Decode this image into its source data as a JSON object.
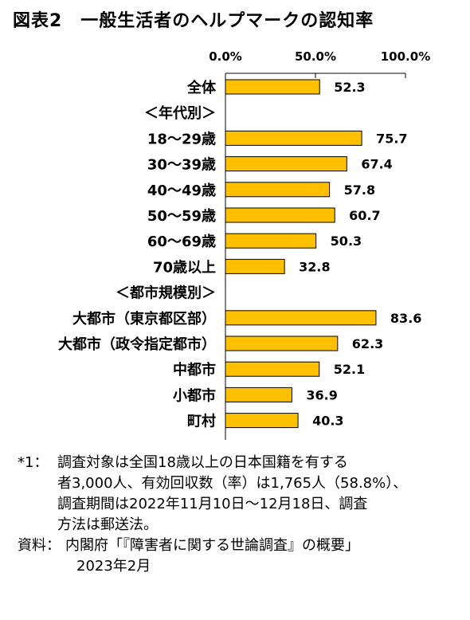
{
  "title": "図表2　一般生活者のヘルプマークの認知率",
  "chart_data": {
    "type": "bar",
    "orientation": "horizontal",
    "xlim": [
      0,
      100
    ],
    "x_ticks": [
      "0.0%",
      "50.0%",
      "100.0%"
    ],
    "bar_color": "#FFC000",
    "categories": [
      "全体",
      "＜年代別＞",
      "18～29歳",
      "30～39歳",
      "40～49歳",
      "50～59歳",
      "60～69歳",
      "70歳以上",
      "＜都市規模別＞",
      "大都市（東京都区部）",
      "大都市（政令指定都市）",
      "中都市",
      "小都市",
      "町村"
    ],
    "values": [
      52.3,
      null,
      75.7,
      67.4,
      57.8,
      60.7,
      50.3,
      32.8,
      null,
      83.6,
      62.3,
      52.1,
      36.9,
      40.3
    ],
    "value_labels": [
      "52.3",
      "",
      "75.7",
      "67.4",
      "57.8",
      "60.7",
      "50.3",
      "32.8",
      "",
      "83.6",
      "62.3",
      "52.1",
      "36.9",
      "40.3"
    ]
  },
  "notes": {
    "key": "*1：",
    "lines": [
      "調査対象は全国18歳以上の日本国籍を有する",
      "者3,000人、有効回収数（率）は1,765人（58.8%）、",
      "調査期間は2022年11月10日～12月18日、調査",
      "方法は郵送法。"
    ]
  },
  "source": {
    "key": "資料：",
    "text": "内閣府「『障害者に関する世論調査』の概要」",
    "date": "2023年2月"
  }
}
